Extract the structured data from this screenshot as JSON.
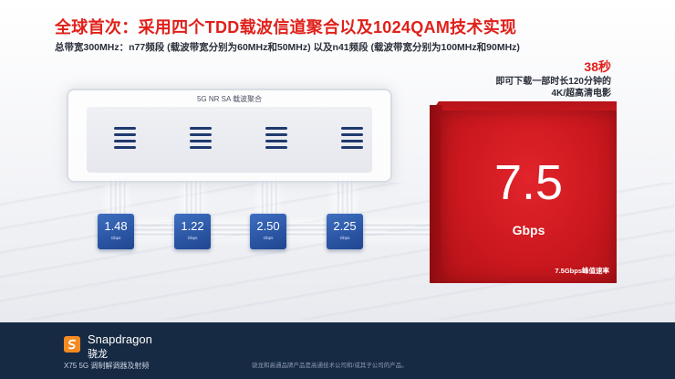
{
  "slide": {
    "title": "全球首次：采用四个TDD载波信道聚合以及1024QAM技术实现",
    "subtitle": "总带宽300MHz：n77频段 (载波带宽分别为60MHz和50MHz) 以及n41频段 (载波带宽分别为100MHz和90MHz)"
  },
  "callout": {
    "seconds": "38秒",
    "line1": "即可下载一部时长120分钟的",
    "line2": "4K/超高清电影"
  },
  "panel": {
    "label": "5G NR SA 载波聚合",
    "band_icons": [
      "carrier-icon",
      "carrier-icon",
      "carrier-icon",
      "carrier-icon"
    ]
  },
  "rates": [
    {
      "value": "1.48",
      "unit": "Gbps"
    },
    {
      "value": "1.22",
      "unit": "Gbps"
    },
    {
      "value": "2.50",
      "unit": "Gbps"
    },
    {
      "value": "2.25",
      "unit": "Gbps"
    }
  ],
  "total": {
    "value": "7.5",
    "unit": "Gbps",
    "caption": "7.5Gbps峰值速率"
  },
  "footer": {
    "brand": "Snapdragon",
    "brand_cn": "骁龙",
    "product": "X75 5G 调制解调器及射频",
    "disclaimer": "骁龙和高通品牌产品是高通技术公司和/或其子公司的产品。"
  },
  "colors": {
    "title_red": "#e0201a",
    "rate_blue": "#2a55a3",
    "cube_red": "#cc181f",
    "footer_navy": "#172a43",
    "logo_orange": "#f28b22"
  }
}
